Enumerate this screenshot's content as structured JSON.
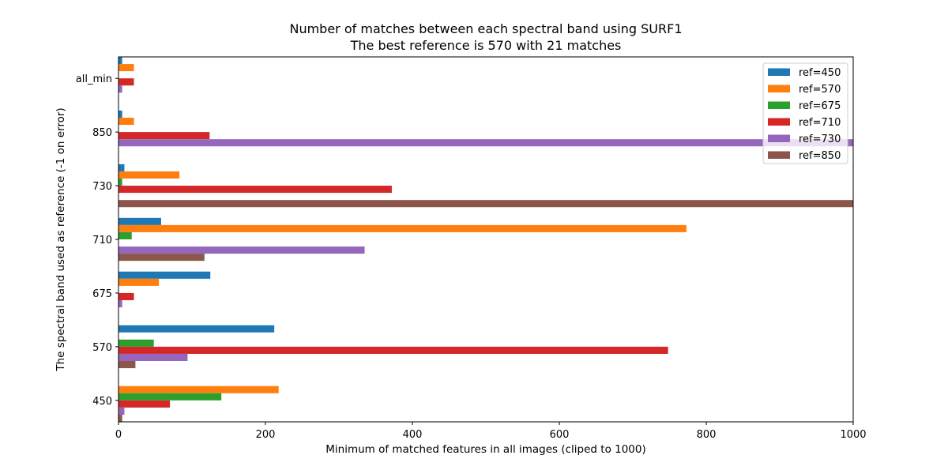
{
  "chart_data": {
    "type": "bar",
    "orientation": "horizontal",
    "title": "Number of matches between each spectral band using SURF1",
    "subtitle": "The best reference is 570 with 21 matches",
    "xlabel": "Minimum of matched features in all images (cliped to 1000)",
    "ylabel": "The spectral band used as reference (-1 on error)",
    "xlim": [
      0,
      1000
    ],
    "xticks": [
      "0",
      "200",
      "400",
      "600",
      "800",
      "1000"
    ],
    "categories": [
      "450",
      "570",
      "675",
      "710",
      "730",
      "850",
      "all_min"
    ],
    "grid": false,
    "legend_position": "top-right",
    "series": [
      {
        "name": "ref=450",
        "color": "#1f77b4",
        "values": [
          0,
          212,
          125,
          58,
          8,
          5,
          5
        ]
      },
      {
        "name": "ref=570",
        "color": "#ff7f0e",
        "values": [
          218,
          0,
          55,
          773,
          83,
          21,
          21
        ]
      },
      {
        "name": "ref=675",
        "color": "#2ca02c",
        "values": [
          140,
          48,
          0,
          18,
          5,
          0,
          0
        ]
      },
      {
        "name": "ref=710",
        "color": "#d62728",
        "values": [
          70,
          748,
          21,
          0,
          372,
          124,
          21
        ]
      },
      {
        "name": "ref=730",
        "color": "#9467bd",
        "values": [
          8,
          94,
          5,
          335,
          0,
          1000,
          5
        ]
      },
      {
        "name": "ref=850",
        "color": "#8c564b",
        "values": [
          5,
          23,
          0,
          117,
          1000,
          0,
          0
        ]
      }
    ]
  }
}
